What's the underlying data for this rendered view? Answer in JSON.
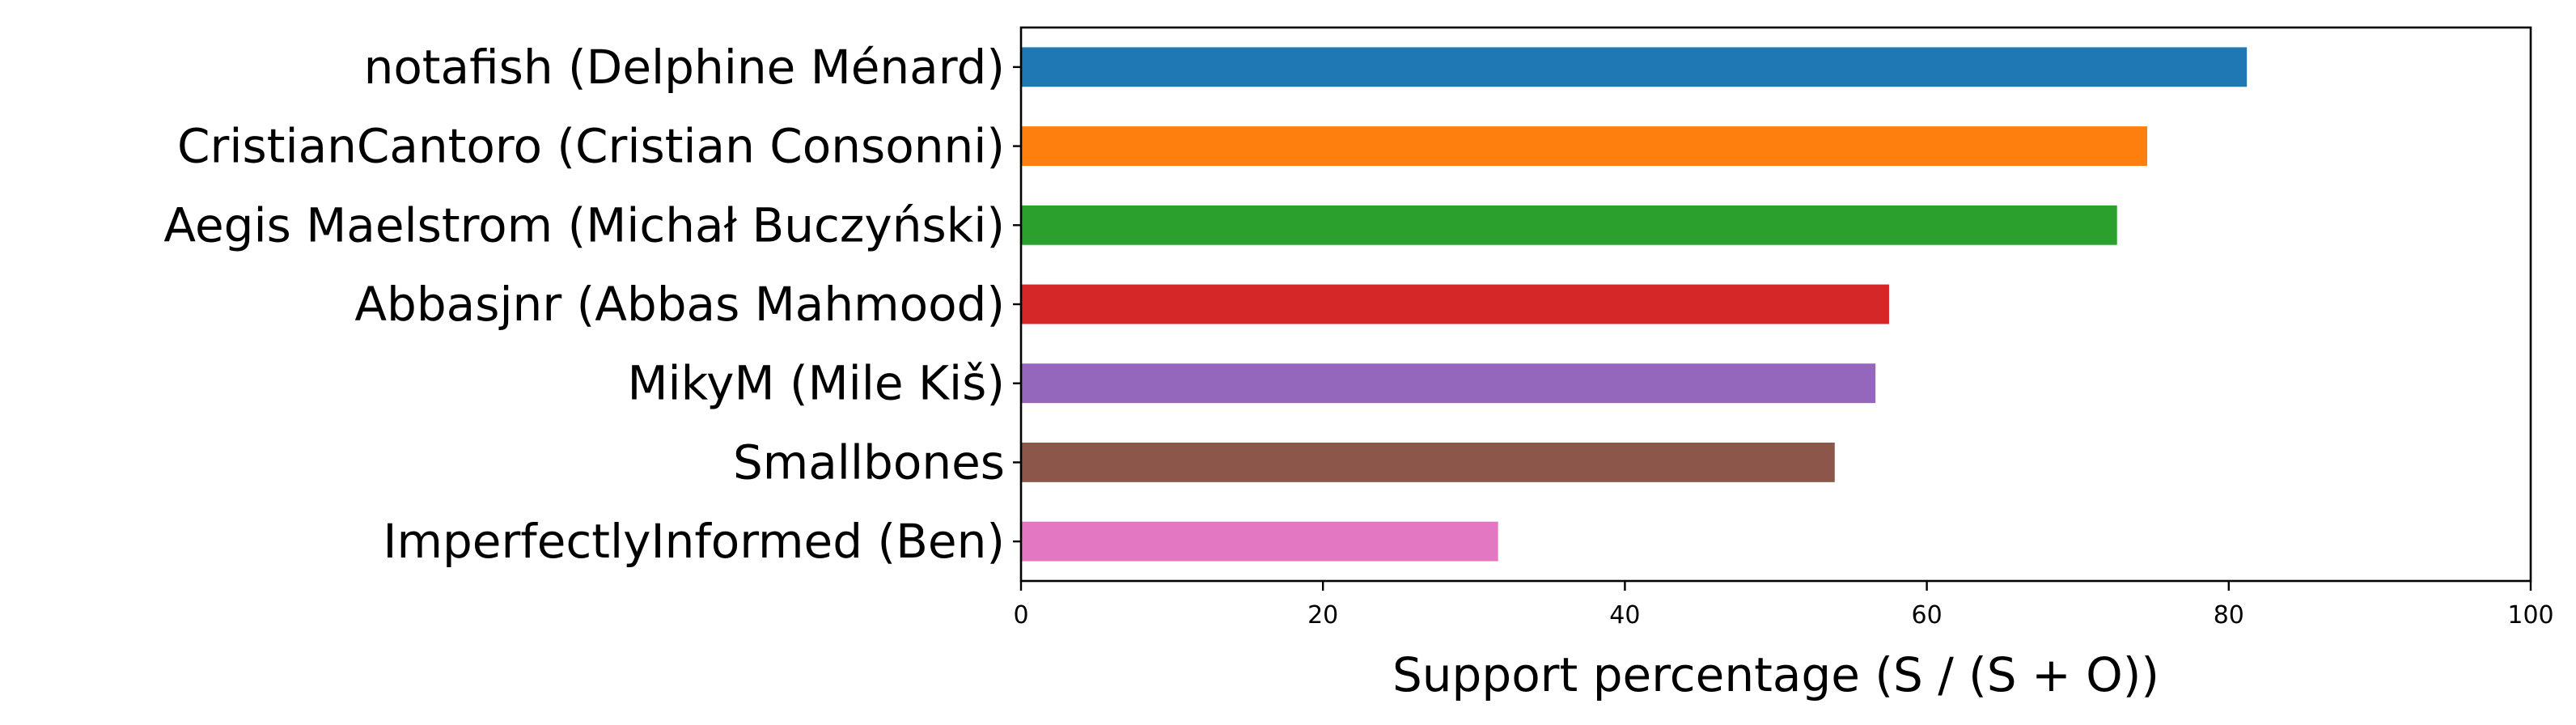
{
  "chart_data": {
    "type": "bar",
    "orientation": "horizontal",
    "categories": [
      "notafish (Delphine Ménard)",
      "CristianCantoro (Cristian Consonni)",
      "Aegis Maelstrom (Michał Buczyński)",
      "Abbasjnr (Abbas Mahmood)",
      "MikyM (Mile Kiš)",
      "Smallbones",
      "ImperfectlyInformed (Ben)"
    ],
    "values": [
      81.2,
      74.6,
      72.6,
      57.5,
      56.6,
      53.9,
      31.6
    ],
    "colors": [
      "#1f77b4",
      "#ff7f0e",
      "#2ca02c",
      "#d62728",
      "#9467bd",
      "#8c564b",
      "#e377c2"
    ],
    "xlabel": "Support percentage (S / (S + O))",
    "ylabel": "",
    "xlim": [
      0,
      100
    ],
    "xticks": [
      0,
      20,
      40,
      60,
      80,
      100
    ],
    "grid": false,
    "legend": "none"
  }
}
